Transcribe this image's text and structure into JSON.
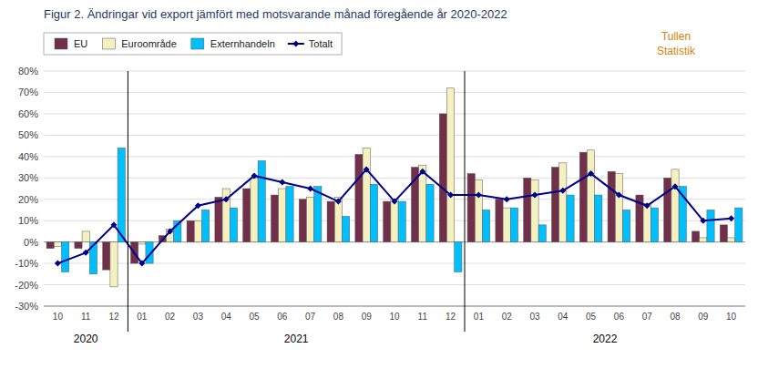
{
  "chart_data": {
    "type": "bar",
    "title": "Figur 2. Ändringar vid export jämfört med motsvarande månad föregående år 2020-2022",
    "annotations": [
      "Tullen",
      "Statistik"
    ],
    "x_group_labels": [
      "2020",
      "2021",
      "2022"
    ],
    "categories": [
      "10",
      "11",
      "12",
      "01",
      "02",
      "03",
      "04",
      "05",
      "06",
      "07",
      "08",
      "09",
      "10",
      "11",
      "12",
      "01",
      "02",
      "03",
      "04",
      "05",
      "06",
      "07",
      "08",
      "09",
      "10"
    ],
    "series": [
      {
        "name": "EU",
        "color": "#722F4A",
        "values": [
          -3,
          -3,
          -13,
          -10,
          3,
          10,
          21,
          25,
          22,
          20,
          19,
          41,
          19,
          35,
          60,
          32,
          20,
          30,
          35,
          42,
          33,
          22,
          30,
          5,
          8
        ]
      },
      {
        "name": "Euroområde",
        "color": "#F5F0C0",
        "values": [
          -2,
          5,
          -21,
          -1,
          6,
          10,
          25,
          30,
          25,
          21,
          21,
          44,
          20,
          36,
          72,
          29,
          16,
          29,
          37,
          43,
          32,
          18,
          34,
          2,
          2
        ]
      },
      {
        "name": "Externhandeln",
        "color": "#00BFFF",
        "values": [
          -14,
          -15,
          44,
          -10,
          10,
          15,
          16,
          38,
          26,
          26,
          12,
          27,
          19,
          27,
          -14,
          15,
          16,
          8,
          22,
          22,
          15,
          16,
          26,
          15,
          16
        ]
      },
      {
        "name": "Totalt",
        "type": "line",
        "color": "#00008B",
        "marker": "diamond",
        "values": [
          -10,
          -5,
          8,
          -10,
          5,
          17,
          20,
          31,
          28,
          25,
          19,
          34,
          19,
          33,
          22,
          22,
          20,
          22,
          24,
          32,
          22,
          17,
          26,
          10,
          11
        ]
      }
    ],
    "ylim": [
      -30,
      80
    ],
    "yticks": [
      {
        "value": -30,
        "label": "-30%"
      },
      {
        "value": -20,
        "label": "-20%"
      },
      {
        "value": -10,
        "label": "-10%"
      },
      {
        "value": 0,
        "label": "0%"
      },
      {
        "value": 10,
        "label": "10%"
      },
      {
        "value": 20,
        "label": "20%"
      },
      {
        "value": 30,
        "label": "30%"
      },
      {
        "value": 40,
        "label": "40%"
      },
      {
        "value": 50,
        "label": "50%"
      },
      {
        "value": 60,
        "label": "60%"
      },
      {
        "value": 70,
        "label": "70%"
      },
      {
        "value": 80,
        "label": "80%"
      }
    ],
    "grid": true,
    "legend": "upper left"
  }
}
